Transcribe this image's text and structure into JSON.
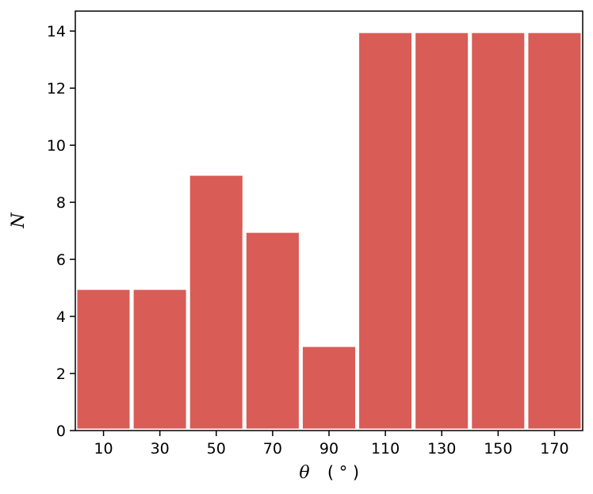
{
  "chart_data": {
    "type": "bar",
    "categories": [
      "10",
      "30",
      "50",
      "70",
      "90",
      "110",
      "130",
      "150",
      "170"
    ],
    "x": [
      10,
      30,
      50,
      70,
      90,
      110,
      130,
      150,
      170
    ],
    "bin_width": 20,
    "values": [
      5,
      5,
      9,
      7,
      3,
      14,
      14,
      14,
      14
    ],
    "xlim": [
      0,
      180
    ],
    "ylim": [
      0,
      14.7
    ],
    "yticks": [
      "0",
      "2",
      "4",
      "6",
      "8",
      "10",
      "12",
      "14"
    ],
    "xlabel_symbol": "θ",
    "xlabel_unit": "( ° )",
    "ylabel": "N",
    "bar_color": "#d95c57",
    "bar_edge_color": "#ffffff",
    "grid": false
  }
}
